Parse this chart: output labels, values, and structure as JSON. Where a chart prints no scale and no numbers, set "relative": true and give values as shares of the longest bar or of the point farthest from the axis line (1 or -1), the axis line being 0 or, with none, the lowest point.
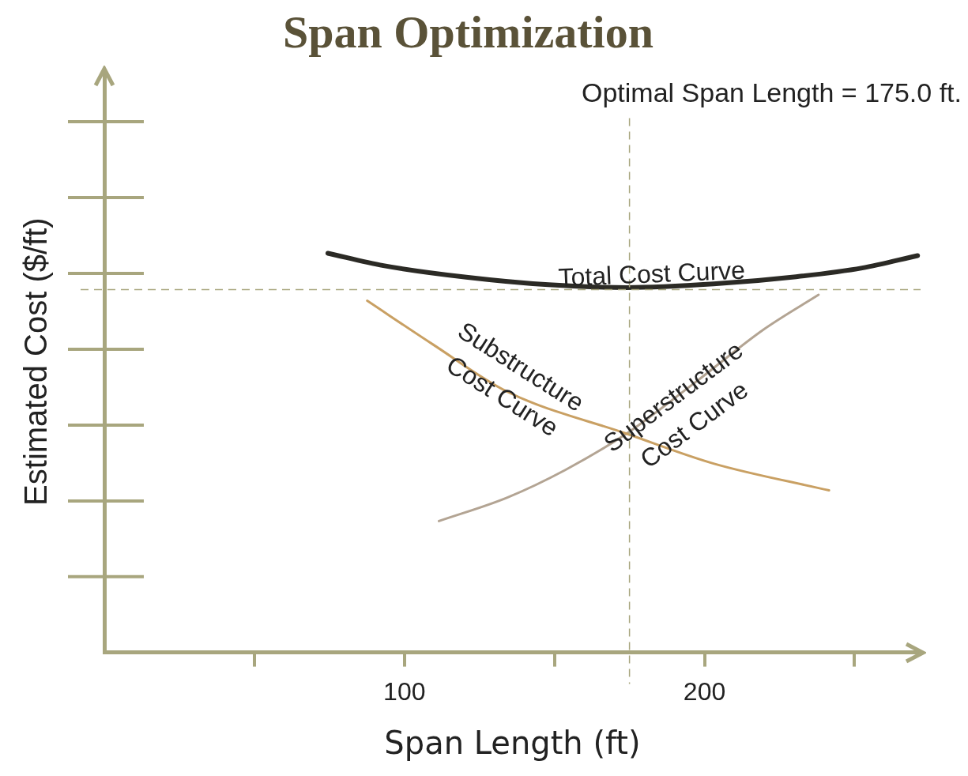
{
  "chart_data": {
    "type": "line",
    "title": "Span Optimization",
    "xlabel": "Span Length (ft)",
    "ylabel": "Estimated Cost ($/ft)",
    "relative": true,
    "xlim": [
      0,
      272
    ],
    "xticks": [
      {
        "value": 50,
        "label": null
      },
      100,
      {
        "value": 150,
        "label": null
      },
      200,
      {
        "value": 250,
        "label": null
      }
    ],
    "grid": false,
    "legend": false,
    "marker": "none",
    "line_style": "solid",
    "ref_lines": [
      {
        "axis": "x",
        "value": 175,
        "label": "Optimal Span Length = 175.0 ft.",
        "color": "#a8a67e",
        "line_style": "dashed"
      },
      {
        "axis": "y",
        "value": 0.909,
        "color": "#a8a67e",
        "line_style": "dashed"
      }
    ],
    "series": [
      {
        "name": "Total Cost Curve",
        "color": "#2b2a25",
        "x": [
          74.5,
          93,
          120.6,
          148,
          174,
          203,
          230.5,
          252.5,
          271
        ],
        "values": [
          1,
          0.969,
          0.94,
          0.921,
          0.914,
          0.923,
          0.941,
          0.963,
          0.994
        ]
      },
      {
        "name": "Substructure\nCost Curve",
        "color": "#c9a063",
        "x": [
          87.6,
          109.6,
          134.3,
          174,
          203,
          241.5
        ],
        "values": [
          0.881,
          0.771,
          0.653,
          0.548,
          0.473,
          0.406
        ]
      },
      {
        "name": "Superstructure\nCost Curve",
        "color": "#b3a493",
        "x": [
          111.5,
          134.3,
          153.6,
          174,
          197.5,
          219.5,
          238
        ],
        "values": [
          0.329,
          0.388,
          0.457,
          0.548,
          0.68,
          0.808,
          0.896
        ]
      }
    ]
  }
}
